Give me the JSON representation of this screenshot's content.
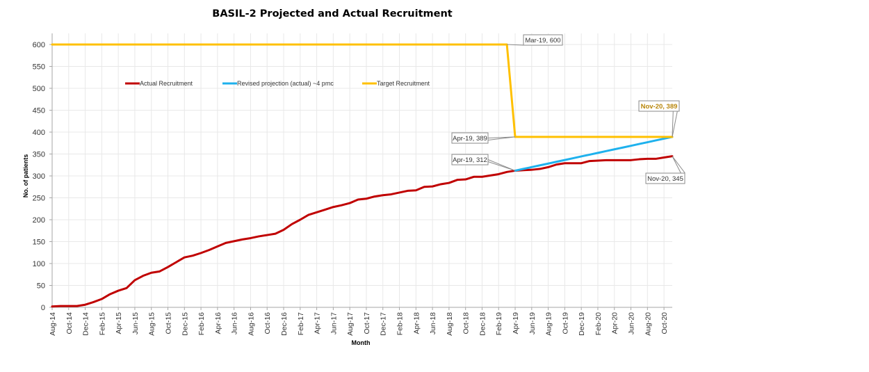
{
  "chart_data": {
    "type": "line",
    "title": "BASIL-2 Projected and Actual Recruitment",
    "xlabel": "Month",
    "ylabel": "No. of patients",
    "ylim": [
      0,
      600
    ],
    "yticks": [
      0,
      50,
      100,
      150,
      200,
      250,
      300,
      350,
      400,
      450,
      500,
      550,
      600
    ],
    "grid": true,
    "legend_position": "top-left",
    "x": [
      "Aug-14",
      "Sep-14",
      "Oct-14",
      "Nov-14",
      "Dec-14",
      "Jan-15",
      "Feb-15",
      "Mar-15",
      "Apr-15",
      "May-15",
      "Jun-15",
      "Jul-15",
      "Aug-15",
      "Sep-15",
      "Oct-15",
      "Nov-15",
      "Dec-15",
      "Jan-16",
      "Feb-16",
      "Mar-16",
      "Apr-16",
      "May-16",
      "Jun-16",
      "Jul-16",
      "Aug-16",
      "Sep-16",
      "Oct-16",
      "Nov-16",
      "Dec-16",
      "Jan-17",
      "Feb-17",
      "Mar-17",
      "Apr-17",
      "May-17",
      "Jun-17",
      "Jul-17",
      "Aug-17",
      "Sep-17",
      "Oct-17",
      "Nov-17",
      "Dec-17",
      "Jan-18",
      "Feb-18",
      "Mar-18",
      "Apr-18",
      "May-18",
      "Jun-18",
      "Jul-18",
      "Aug-18",
      "Sep-18",
      "Oct-18",
      "Nov-18",
      "Dec-18",
      "Jan-19",
      "Feb-19",
      "Mar-19",
      "Apr-19",
      "May-19",
      "Jun-19",
      "Jul-19",
      "Aug-19",
      "Sep-19",
      "Oct-19",
      "Nov-19",
      "Dec-19",
      "Jan-20",
      "Feb-20",
      "Mar-20",
      "Apr-20",
      "May-20",
      "Jun-20",
      "Jul-20",
      "Aug-20",
      "Sep-20",
      "Oct-20",
      "Nov-20"
    ],
    "xtick_labels": [
      "Aug-14",
      "Oct-14",
      "Dec-14",
      "Feb-15",
      "Apr-15",
      "Jun-15",
      "Aug-15",
      "Oct-15",
      "Dec-15",
      "Feb-16",
      "Apr-16",
      "Jun-16",
      "Aug-16",
      "Oct-16",
      "Dec-16",
      "Feb-17",
      "Apr-17",
      "Jun-17",
      "Aug-17",
      "Oct-17",
      "Dec-17",
      "Feb-18",
      "Apr-18",
      "Jun-18",
      "Aug-18",
      "Oct-18",
      "Dec-18",
      "Feb-19",
      "Apr-19",
      "Jun-19",
      "Aug-19",
      "Oct-19",
      "Dec-19",
      "Feb-20",
      "Apr-20",
      "Jun-20",
      "Aug-20",
      "Oct-20"
    ],
    "series": [
      {
        "name": "Actual Recruitment",
        "color": "#c00000",
        "start": "Aug-14",
        "values": [
          2,
          3,
          3,
          3,
          6,
          12,
          19,
          30,
          38,
          44,
          62,
          72,
          79,
          82,
          92,
          103,
          114,
          118,
          124,
          131,
          139,
          147,
          151,
          155,
          158,
          162,
          165,
          168,
          177,
          190,
          200,
          211,
          217,
          223,
          229,
          233,
          238,
          246,
          248,
          253,
          256,
          258,
          262,
          266,
          267,
          275,
          276,
          281,
          284,
          291,
          292,
          298,
          298,
          301,
          304,
          309,
          312,
          313,
          314,
          316,
          320,
          326,
          329,
          329,
          329,
          334,
          335,
          336,
          336,
          336,
          336,
          338,
          339,
          339,
          342,
          345
        ]
      },
      {
        "name": "Revised projection (actual) ~4 pmc",
        "color": "#1eb1ed",
        "start": "Apr-19",
        "values": [
          312,
          316.1,
          320.1,
          324.2,
          328.2,
          332.3,
          336.3,
          340.4,
          344.5,
          348.5,
          352.6,
          356.6,
          360.7,
          364.7,
          368.8,
          372.9,
          376.9,
          381,
          385,
          389
        ]
      },
      {
        "name": "Target Recruitment",
        "color": "#ffc000",
        "start": "Aug-14",
        "values": [
          600,
          600,
          600,
          600,
          600,
          600,
          600,
          600,
          600,
          600,
          600,
          600,
          600,
          600,
          600,
          600,
          600,
          600,
          600,
          600,
          600,
          600,
          600,
          600,
          600,
          600,
          600,
          600,
          600,
          600,
          600,
          600,
          600,
          600,
          600,
          600,
          600,
          600,
          600,
          600,
          600,
          600,
          600,
          600,
          600,
          600,
          600,
          600,
          600,
          600,
          600,
          600,
          600,
          600,
          600,
          600,
          389,
          389,
          389,
          389,
          389,
          389,
          389,
          389,
          389,
          389,
          389,
          389,
          389,
          389,
          389,
          389,
          389,
          389,
          389,
          389
        ]
      }
    ],
    "annotations": [
      {
        "label": "Mar-19, 600",
        "x": "Mar-19",
        "y": 600,
        "series": "Target Recruitment"
      },
      {
        "label": "Apr-19, 389",
        "x": "Apr-19",
        "y": 389,
        "series": "Target Recruitment"
      },
      {
        "label": "Apr-19, 312",
        "x": "Apr-19",
        "y": 312,
        "series": "Actual Recruitment"
      },
      {
        "label": "Nov-20, 389",
        "x": "Nov-20",
        "y": 389,
        "series": "Revised projection (actual) ~4 pmc",
        "highlight": true
      },
      {
        "label": "Nov-20, 345",
        "x": "Nov-20",
        "y": 345,
        "series": "Actual Recruitment"
      }
    ]
  }
}
